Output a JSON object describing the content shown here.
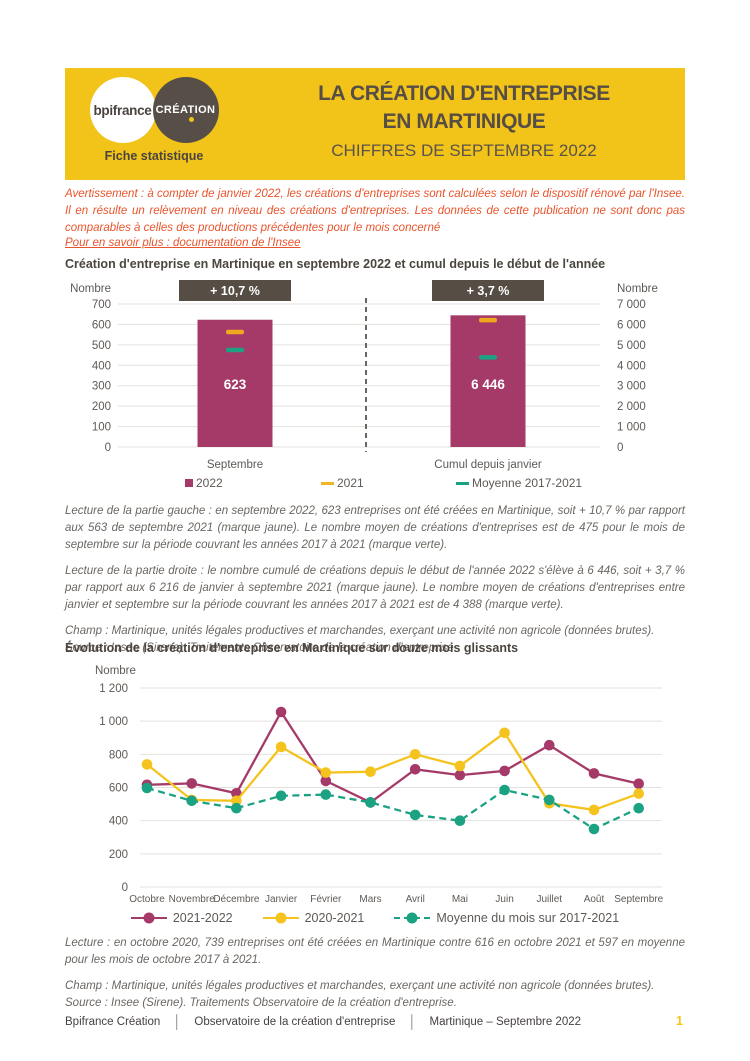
{
  "header": {
    "logo_bpifrance": "bpifrance",
    "logo_creation": "CRÉATION",
    "tagline": "Fiche statistique",
    "title_line1": "LA CRÉATION D'ENTREPRISE",
    "title_line2": "EN MARTINIQUE",
    "subtitle": "CHIFFRES DE SEPTEMBRE 2022"
  },
  "notice": {
    "warning": "Avertissement : à compter de janvier 2022, les créations d'entreprises sont calculées selon le dispositif rénové par l'Insee. Il en résulte un relèvement en niveau des créations d'entreprises. Les données de cette publication ne sont donc pas comparables à celles des productions précédentes pour le mois concerné",
    "link": "Pour en savoir plus : documentation de l'Insee"
  },
  "section1": {
    "lecture_left": "Lecture de la partie gauche : en septembre 2022, 623 entreprises ont été créées en Martinique, soit + 10,7 % par rapport aux 563 de septembre 2021 (marque jaune). Le nombre moyen de créations d'entreprises est de 475 pour le mois de septembre sur la période couvrant les années 2017 à 2021 (marque verte).",
    "lecture_right": "Lecture de la partie droite : le nombre cumulé de créations depuis le début de l'année 2022 s'élève à 6 446, soit + 3,7 % par rapport aux 6 216 de janvier à septembre 2021 (marque jaune). Le nombre moyen de créations d'entreprises entre janvier et septembre sur la période couvrant les années 2017 à 2021 est de 4 388 (marque verte).",
    "champ": "Champ : Martinique, unités légales productives et marchandes, exerçant une activité non agricole (données brutes).",
    "source": "Source : Insee (Sirene). Traitements Observatoire de la création d'entreprise."
  },
  "section2": {
    "lecture": "Lecture : en octobre 2020, 739 entreprises ont été créées en Martinique contre 616 en octobre 2021 et 597 en moyenne pour les mois de octobre 2017 à 2021.",
    "champ": "Champ : Martinique, unités légales productives et marchandes, exerçant une activité non agricole (données brutes).",
    "source": "Source : Insee (Sirene). Traitements Observatoire de la création d'entreprise."
  },
  "footer": {
    "items": [
      "Bpifrance Création",
      "Observatoire de la création d'entreprise",
      "Martinique – Septembre 2022"
    ],
    "page": "1"
  },
  "colors": {
    "accent_yellow": "#F2C319",
    "brand_brown": "#564E45",
    "magenta": "#A53A69",
    "gold_line": "#F5C31D",
    "gold_marker": "#F0A81E",
    "teal": "#1AA283",
    "warning_orange": "#E8542C",
    "grid": "#E4E2DF",
    "axis_text": "#5E5955"
  },
  "chart_data": [
    {
      "type": "bar",
      "title": "Création d'entreprise en Martinique en septembre 2022 et cumul depuis le début de l'année",
      "axis_left_label": "Nombre",
      "axis_right_label": "Nombre",
      "ylim_left": [
        0,
        700
      ],
      "ylim_right": [
        0,
        7000
      ],
      "left_ticks": [
        "700",
        "600",
        "500",
        "400",
        "300",
        "200",
        "100",
        "0"
      ],
      "right_ticks": [
        "7 000",
        "6 000",
        "5 000",
        "4 000",
        "3 000",
        "2 000",
        "1 000",
        "0"
      ],
      "grid": true,
      "groups": [
        {
          "category": "Septembre",
          "badge": "+ 10,7 %",
          "value_2022": 623,
          "value_label": "623",
          "marker_2021": 563,
          "marker_moyenne_2017_2021": 475,
          "axis_max": 700
        },
        {
          "category": "Cumul depuis janvier",
          "badge": "+ 3,7 %",
          "value_2022": 6446,
          "value_label": "6 446",
          "marker_2021": 6216,
          "marker_moyenne_2017_2021": 4388,
          "axis_max": 7000
        }
      ],
      "legend": [
        {
          "label": "2022",
          "marker": "square",
          "color": "#A53A69"
        },
        {
          "label": "2021",
          "marker": "dash",
          "color": "#F0B424"
        },
        {
          "label": "Moyenne 2017-2021",
          "marker": "dash",
          "color": "#1AA283"
        }
      ],
      "legend_position": "bottom"
    },
    {
      "type": "line",
      "title": "Évolution de la création d'entreprise en Martinique sur douze mois glissants",
      "ylabel": "Nombre",
      "ylim": [
        0,
        1200
      ],
      "yticks": [
        "1 200",
        "1 000",
        "800",
        "600",
        "400",
        "200",
        "0"
      ],
      "grid": true,
      "categories": [
        "Octobre",
        "Novembre",
        "Décembre",
        "Janvier",
        "Février",
        "Mars",
        "Avril",
        "Mai",
        "Juin",
        "Juillet",
        "Août",
        "Septembre"
      ],
      "series": [
        {
          "name": "2021-2022",
          "color": "#A53A69",
          "dashed": false,
          "values": [
            616,
            625,
            565,
            1055,
            640,
            510,
            710,
            675,
            700,
            855,
            685,
            623
          ]
        },
        {
          "name": "2020-2021",
          "color": "#F5C31D",
          "dashed": false,
          "values": [
            739,
            525,
            520,
            845,
            690,
            695,
            800,
            730,
            930,
            505,
            465,
            563
          ]
        },
        {
          "name": "Moyenne du mois sur 2017-2021",
          "color": "#1AA283",
          "dashed": true,
          "values": [
            597,
            520,
            475,
            550,
            557,
            510,
            435,
            400,
            585,
            525,
            350,
            475
          ]
        }
      ],
      "legend_position": "bottom"
    }
  ]
}
